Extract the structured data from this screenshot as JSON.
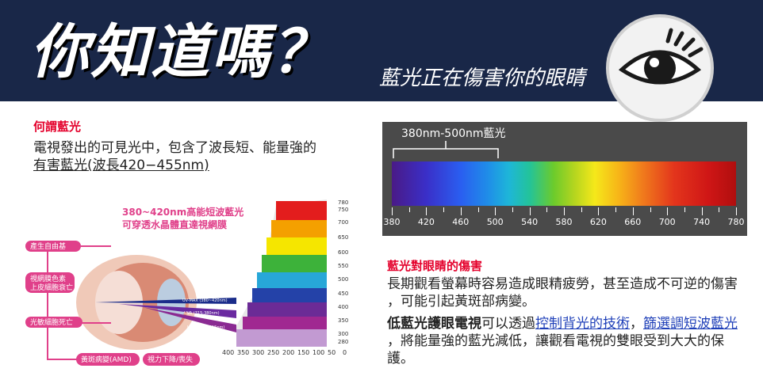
{
  "banner": {
    "title": "你知道嗎？",
    "subtitle": "藍光正在傷害你的眼睛"
  },
  "left": {
    "heading": "何謂藍光",
    "body_line1": "電視發出的可見光中，包含了波長短、能量強的",
    "body_line2": "有害藍光(波長420−455nm)"
  },
  "diagram": {
    "headline1": "380~420nm高能短波藍光",
    "headline2": "可穿透水晶體直達視網膜",
    "labels": [
      "產生自由基",
      "視網膜色素",
      "上皮細胞衰亡",
      "光敏細胞死亡",
      "黃斑病變(AMD)",
      "視力下降/喪失"
    ],
    "beams": [
      "UV-MAX (380~420nm)",
      "UVA (315-380nm)",
      "UVB (280~315nm)"
    ],
    "scale_right": [
      "780",
      "750",
      "700",
      "650",
      "600",
      "550",
      "500",
      "450",
      "400",
      "350",
      "300",
      "280"
    ],
    "scale_bottom": [
      "400",
      "350",
      "300",
      "250",
      "200",
      "150",
      "100",
      "50",
      "0"
    ]
  },
  "spectrum": {
    "label": "380nm-500nm藍光",
    "ticks": [
      "380",
      "420",
      "460",
      "500",
      "540",
      "580",
      "620",
      "660",
      "700",
      "740",
      "780"
    ]
  },
  "right": {
    "heading": "藍光對眼睛的傷害",
    "body1_line1": "長期觀看螢幕時容易造成眼精疲勞，甚至造成不可逆的傷害",
    "body1_line2": "，可能引起黃斑部病變。",
    "body2_bold": "低藍光護眼電視",
    "body2_a": "可以透過",
    "body2_link1": "控制背光的技術",
    "body2_b": "，",
    "body2_link2": "篩選調短波藍光",
    "body2_line2": "，將能量強的藍光減低，讓觀看電視的雙眼受到大大的保護。"
  },
  "colors": {
    "banner": "#192748",
    "accent_red": "#e4002b",
    "link_blue": "#1e3fb8",
    "pink_label": "#e0408a"
  }
}
